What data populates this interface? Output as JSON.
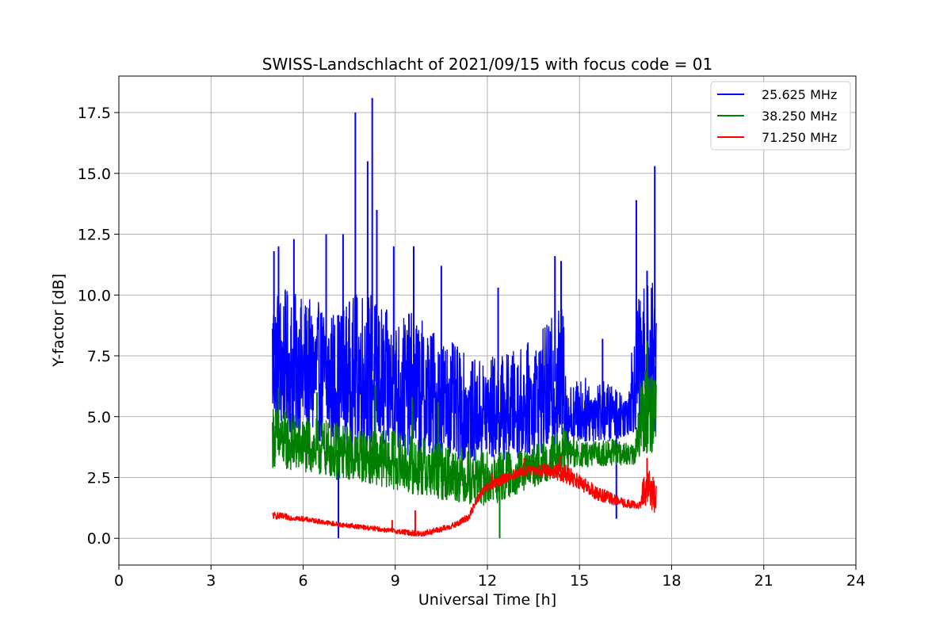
{
  "chart_data": {
    "type": "line",
    "title": "SWISS-Landschlacht of 2021/09/15 with focus code = 01",
    "xlabel": "Universal Time [h]",
    "ylabel": "Y-factor [dB]",
    "xlim": [
      0,
      24
    ],
    "ylim": [
      -1.1,
      19.0
    ],
    "xticks": [
      0,
      3,
      6,
      9,
      12,
      15,
      18,
      21,
      24
    ],
    "xtick_labels": [
      "0",
      "3",
      "6",
      "9",
      "12",
      "15",
      "18",
      "21",
      "24"
    ],
    "yticks": [
      0.0,
      2.5,
      5.0,
      7.5,
      10.0,
      12.5,
      15.0,
      17.5
    ],
    "ytick_labels": [
      "0.0",
      "2.5",
      "5.0",
      "7.5",
      "10.0",
      "12.5",
      "15.0",
      "17.5"
    ],
    "grid": true,
    "legend_position": "top-right",
    "series": [
      {
        "name": "25.625 MHz",
        "color": "#0000ff",
        "band_low": [
          [
            5.0,
            4.6
          ],
          [
            5.5,
            4.3
          ],
          [
            6.0,
            4.2
          ],
          [
            6.5,
            4.0
          ],
          [
            7.0,
            3.9
          ],
          [
            7.5,
            3.9
          ],
          [
            8.0,
            3.8
          ],
          [
            8.5,
            3.6
          ],
          [
            9.0,
            3.5
          ],
          [
            9.5,
            3.4
          ],
          [
            10.0,
            3.3
          ],
          [
            10.5,
            3.2
          ],
          [
            11.0,
            3.2
          ],
          [
            11.5,
            3.2
          ],
          [
            12.0,
            3.2
          ],
          [
            12.5,
            3.2
          ],
          [
            13.0,
            3.3
          ],
          [
            13.5,
            3.4
          ],
          [
            14.0,
            3.5
          ],
          [
            14.5,
            3.8
          ],
          [
            14.6,
            3.8
          ],
          [
            15.0,
            3.9
          ],
          [
            15.5,
            4.0
          ],
          [
            16.0,
            4.0
          ],
          [
            16.5,
            4.2
          ],
          [
            17.0,
            4.5
          ],
          [
            17.5,
            4.3
          ]
        ],
        "band_high": [
          [
            5.0,
            10.5
          ],
          [
            5.5,
            10.2
          ],
          [
            6.0,
            9.9
          ],
          [
            6.5,
            9.7
          ],
          [
            7.0,
            9.4
          ],
          [
            7.5,
            9.8
          ],
          [
            8.0,
            10.5
          ],
          [
            8.5,
            9.6
          ],
          [
            9.0,
            9.1
          ],
          [
            9.5,
            9.3
          ],
          [
            10.0,
            8.9
          ],
          [
            10.5,
            8.4
          ],
          [
            11.0,
            7.9
          ],
          [
            11.5,
            7.3
          ],
          [
            12.0,
            7.5
          ],
          [
            12.5,
            7.6
          ],
          [
            13.0,
            7.8
          ],
          [
            13.5,
            8.2
          ],
          [
            14.0,
            8.9
          ],
          [
            14.5,
            9.8
          ],
          [
            14.6,
            6.3
          ],
          [
            15.0,
            6.6
          ],
          [
            15.5,
            6.6
          ],
          [
            16.0,
            6.4
          ],
          [
            16.5,
            6.0
          ],
          [
            17.0,
            10.5
          ],
          [
            17.5,
            10.6
          ]
        ],
        "spikes": [
          [
            5.05,
            11.8
          ],
          [
            5.2,
            12.0
          ],
          [
            5.7,
            12.3
          ],
          [
            6.75,
            12.5
          ],
          [
            7.3,
            12.5
          ],
          [
            7.7,
            17.5
          ],
          [
            8.1,
            15.5
          ],
          [
            8.25,
            18.1
          ],
          [
            8.4,
            13.5
          ],
          [
            8.95,
            12.0
          ],
          [
            9.6,
            12.0
          ],
          [
            10.5,
            11.2
          ],
          [
            12.35,
            10.3
          ],
          [
            14.2,
            11.6
          ],
          [
            14.4,
            11.4
          ],
          [
            15.75,
            8.2
          ],
          [
            16.2,
            0.8
          ],
          [
            16.85,
            13.9
          ],
          [
            17.2,
            11.0
          ],
          [
            17.45,
            15.3
          ],
          [
            7.15,
            0.0
          ]
        ]
      },
      {
        "name": "38.250 MHz",
        "color": "#008000",
        "band_low": [
          [
            5.0,
            2.9
          ],
          [
            6.0,
            2.7
          ],
          [
            7.0,
            2.5
          ],
          [
            8.0,
            2.3
          ],
          [
            9.0,
            2.0
          ],
          [
            10.0,
            1.7
          ],
          [
            11.0,
            1.5
          ],
          [
            12.0,
            1.3
          ],
          [
            12.5,
            1.5
          ],
          [
            13.0,
            1.8
          ],
          [
            13.5,
            2.1
          ],
          [
            14.0,
            2.4
          ],
          [
            14.5,
            2.7
          ],
          [
            15.0,
            2.9
          ],
          [
            16.0,
            3.0
          ],
          [
            16.8,
            3.0
          ],
          [
            17.0,
            3.5
          ],
          [
            17.5,
            3.5
          ]
        ],
        "band_high": [
          [
            5.0,
            5.5
          ],
          [
            6.0,
            5.0
          ],
          [
            7.0,
            4.8
          ],
          [
            8.0,
            4.5
          ],
          [
            9.0,
            4.4
          ],
          [
            10.0,
            4.1
          ],
          [
            11.0,
            3.8
          ],
          [
            12.0,
            3.6
          ],
          [
            12.5,
            3.6
          ],
          [
            13.0,
            3.6
          ],
          [
            13.5,
            3.8
          ],
          [
            14.0,
            4.1
          ],
          [
            14.5,
            4.6
          ],
          [
            15.0,
            3.9
          ],
          [
            16.0,
            4.1
          ],
          [
            16.8,
            3.8
          ],
          [
            17.0,
            7.0
          ],
          [
            17.5,
            7.4
          ]
        ],
        "spikes": [
          [
            5.2,
            6.2
          ],
          [
            6.45,
            6.0
          ],
          [
            8.35,
            6.3
          ],
          [
            9.55,
            5.8
          ],
          [
            10.4,
            5.6
          ],
          [
            12.4,
            0.0
          ],
          [
            7.1,
            2.4
          ],
          [
            16.2,
            3.2
          ],
          [
            17.2,
            8.1
          ]
        ]
      },
      {
        "name": "71.250 MHz",
        "color": "#ff0000",
        "band_low": [
          [
            5.0,
            0.8
          ],
          [
            6.0,
            0.7
          ],
          [
            7.0,
            0.5
          ],
          [
            8.0,
            0.35
          ],
          [
            9.0,
            0.2
          ],
          [
            9.8,
            0.05
          ],
          [
            10.5,
            0.25
          ],
          [
            11.0,
            0.45
          ],
          [
            11.4,
            0.75
          ],
          [
            11.7,
            1.5
          ],
          [
            12.0,
            1.9
          ],
          [
            12.5,
            2.2
          ],
          [
            13.0,
            2.5
          ],
          [
            13.5,
            2.6
          ],
          [
            14.0,
            2.5
          ],
          [
            14.5,
            2.3
          ],
          [
            15.0,
            2.0
          ],
          [
            15.5,
            1.6
          ],
          [
            16.0,
            1.4
          ],
          [
            16.5,
            1.25
          ],
          [
            17.0,
            1.2
          ],
          [
            17.1,
            1.4
          ],
          [
            17.5,
            1.0
          ]
        ],
        "band_high": [
          [
            5.0,
            1.1
          ],
          [
            6.0,
            0.9
          ],
          [
            7.0,
            0.7
          ],
          [
            8.0,
            0.55
          ],
          [
            9.0,
            0.4
          ],
          [
            9.8,
            0.3
          ],
          [
            10.5,
            0.5
          ],
          [
            11.0,
            0.7
          ],
          [
            11.4,
            1.05
          ],
          [
            11.7,
            1.85
          ],
          [
            12.0,
            2.3
          ],
          [
            12.5,
            2.65
          ],
          [
            13.0,
            2.9
          ],
          [
            13.5,
            3.0
          ],
          [
            14.0,
            3.1
          ],
          [
            14.5,
            3.1
          ],
          [
            15.0,
            2.6
          ],
          [
            15.5,
            2.2
          ],
          [
            16.0,
            1.9
          ],
          [
            16.5,
            1.6
          ],
          [
            17.0,
            1.5
          ],
          [
            17.1,
            3.0
          ],
          [
            17.5,
            2.6
          ]
        ],
        "spikes": [
          [
            8.9,
            0.75
          ],
          [
            9.65,
            1.15
          ],
          [
            12.15,
            2.65
          ],
          [
            13.2,
            3.3
          ],
          [
            14.35,
            3.4
          ],
          [
            17.2,
            3.3
          ]
        ]
      }
    ]
  }
}
